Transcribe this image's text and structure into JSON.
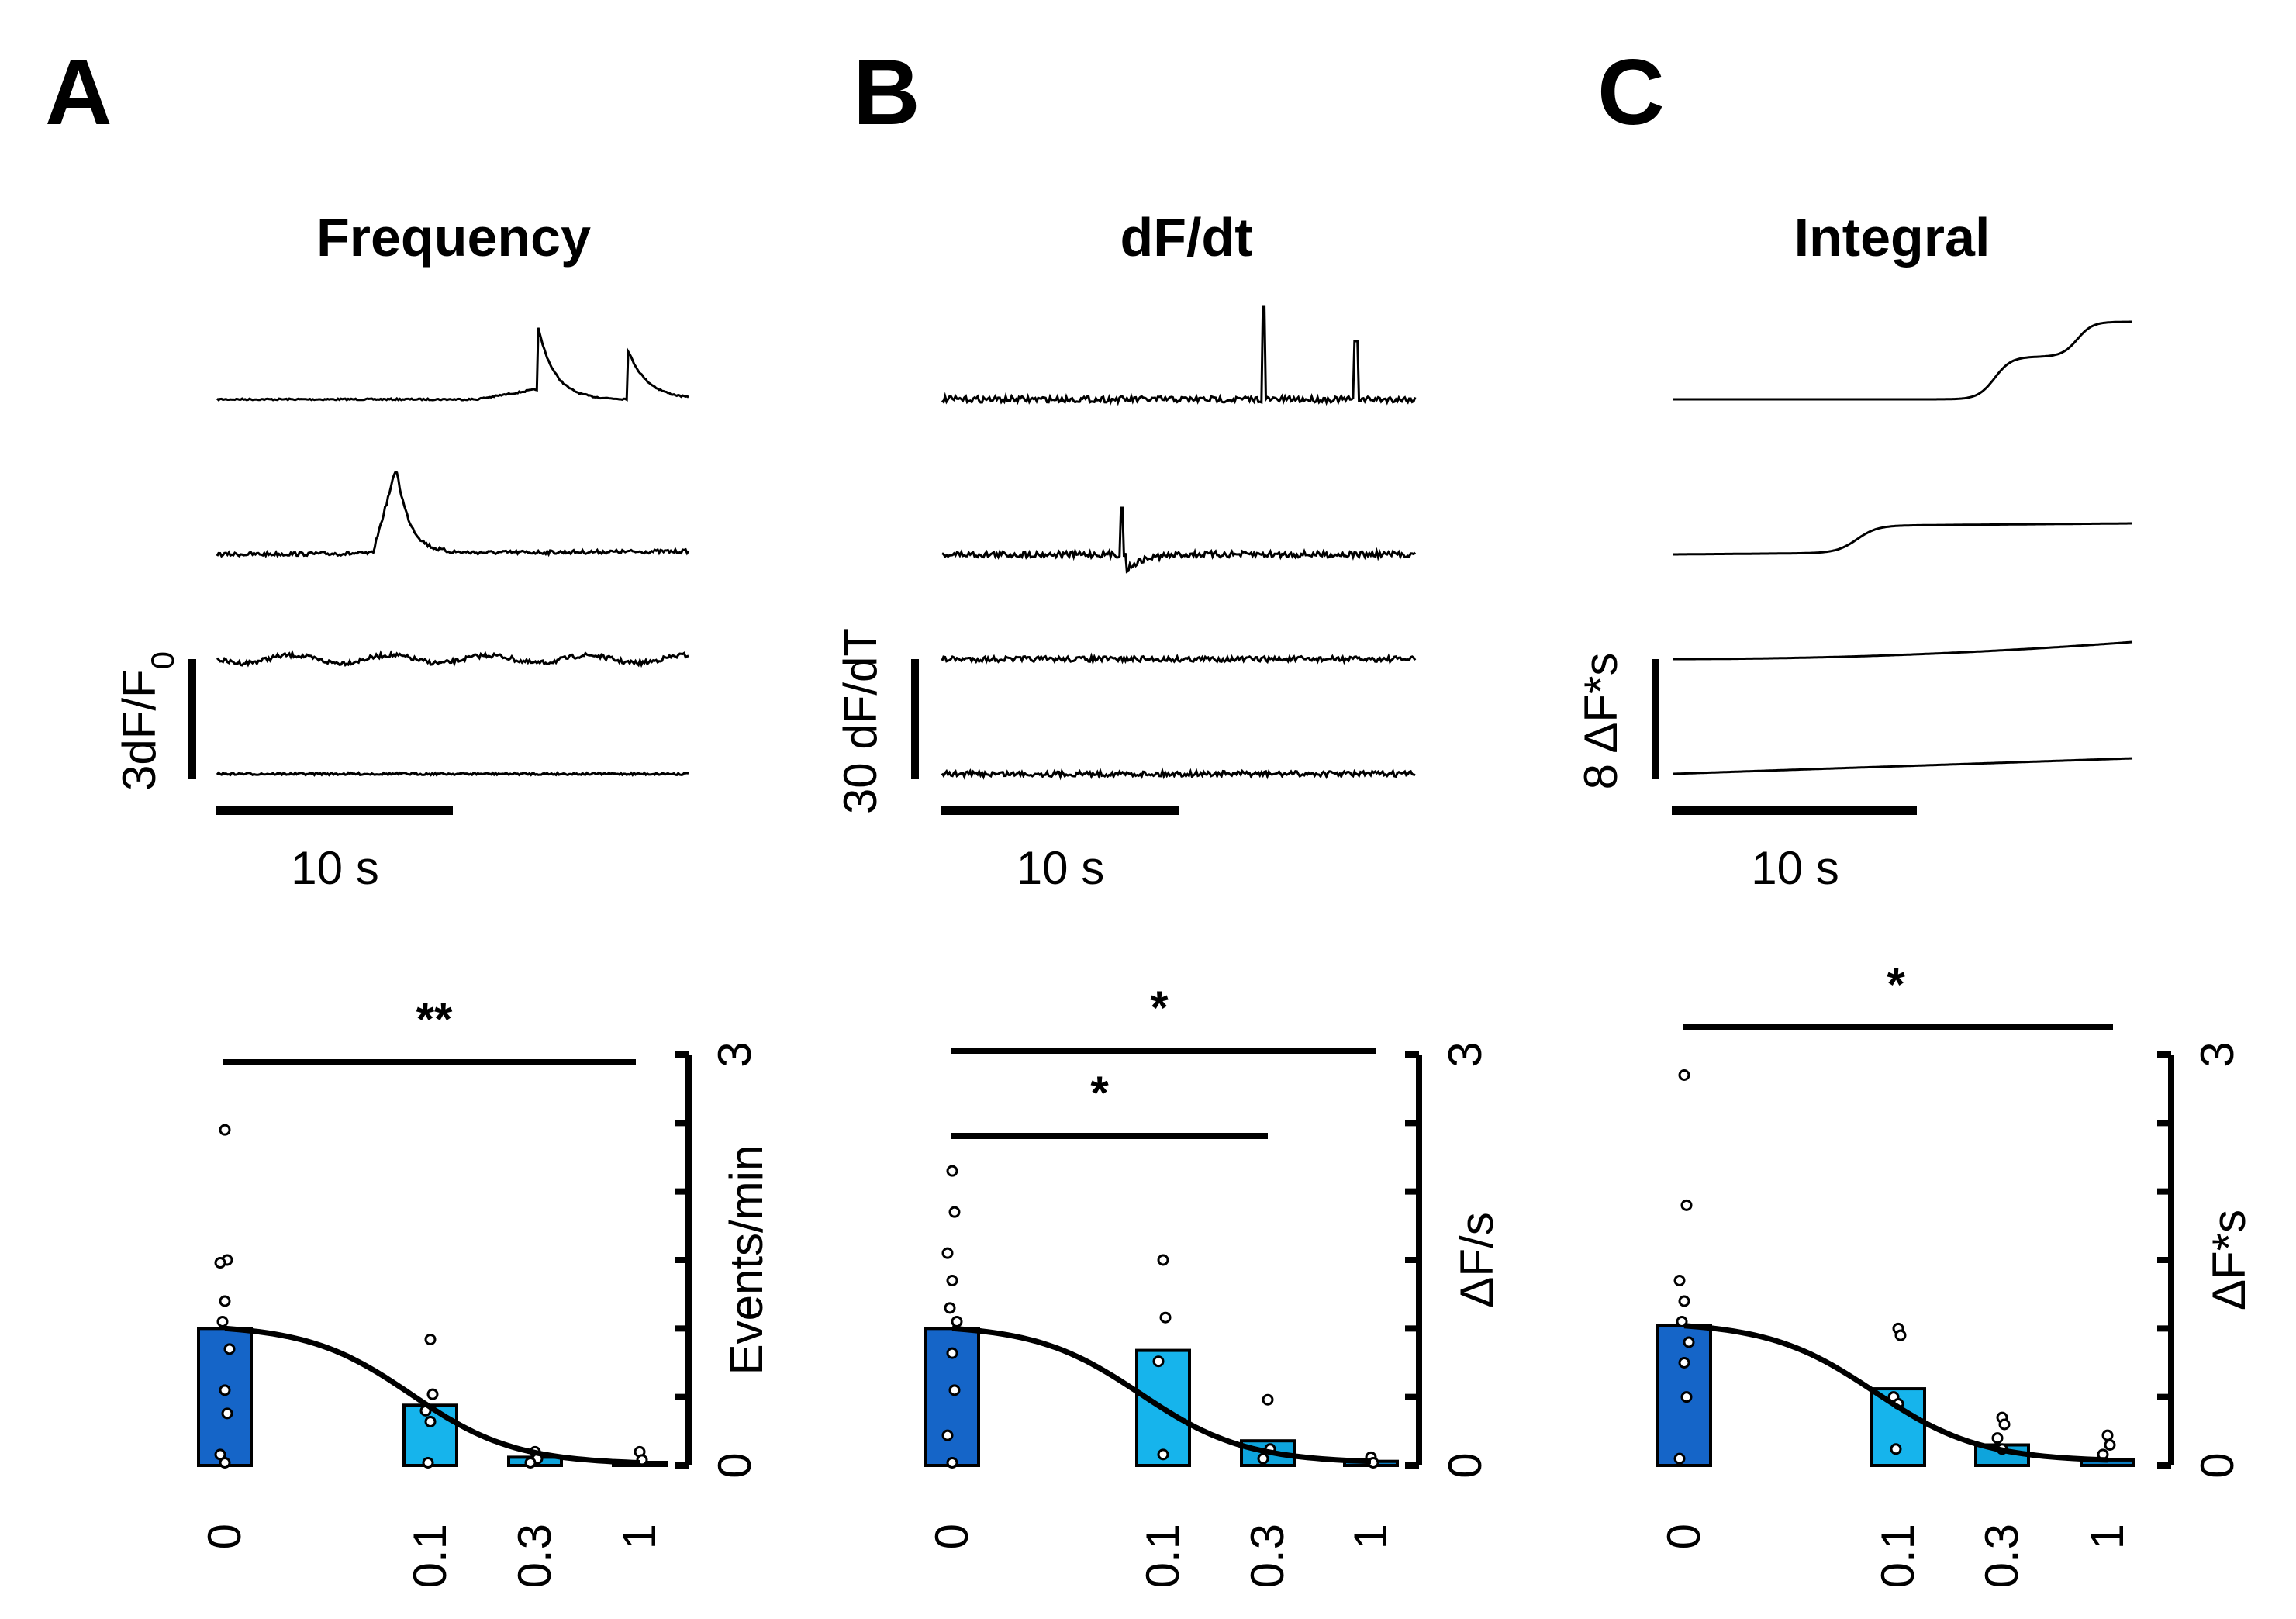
{
  "colors": {
    "bar_dose_0": "#1565c8",
    "bar_dose_0_1": "#16b4ec",
    "bar_dose_0_3": "#0ea4dc",
    "bar_dose_1": "#0b7fc4",
    "trace": "#000000",
    "fit_curve": "#000000"
  },
  "chart_data": [
    {
      "panel_letter": "A",
      "title": "Frequency",
      "type": "bar",
      "categories": [
        "0",
        "0.1",
        "0.3",
        "1"
      ],
      "x": [
        0,
        0.1,
        0.3,
        1
      ],
      "values": [
        1.0,
        0.44,
        0.06,
        0.02
      ],
      "ylabel": "Events/min",
      "ylim": [
        0,
        3
      ],
      "y_tick_labels": [
        "0",
        "3"
      ],
      "individual_points": [
        [
          2.45,
          1.5,
          1.48,
          1.2,
          1.05,
          0.85,
          0.55,
          0.38,
          0.08,
          0.02
        ],
        [
          0.92,
          0.52,
          0.4,
          0.32,
          0.02
        ],
        [
          0.1,
          0.05,
          0.02
        ],
        [
          0.1,
          0.04
        ]
      ],
      "fit_curve": "sigmoid",
      "significance": [
        {
          "from": "0",
          "to": "1",
          "label": "**"
        }
      ],
      "traces": {
        "scale_y_label": "3dF/F0",
        "scale_x_label": "10 s",
        "kind": "raw"
      }
    },
    {
      "panel_letter": "B",
      "title": "dF/dt",
      "type": "bar",
      "categories": [
        "0",
        "0.1",
        "0.3",
        "1"
      ],
      "x": [
        0,
        0.1,
        0.3,
        1
      ],
      "values": [
        1.0,
        0.84,
        0.18,
        0.03
      ],
      "ylabel": "ΔF/s",
      "ylim": [
        0,
        3
      ],
      "y_tick_labels": [
        "0",
        "3"
      ],
      "individual_points": [
        [
          2.15,
          1.85,
          1.55,
          1.35,
          1.15,
          1.05,
          0.82,
          0.55,
          0.22,
          0.02
        ],
        [
          1.5,
          1.08,
          0.76,
          0.08
        ],
        [
          0.48,
          0.12,
          0.05
        ],
        [
          0.06,
          0.02
        ]
      ],
      "fit_curve": "sigmoid",
      "significance": [
        {
          "from": "0",
          "to": "1",
          "label": "*"
        },
        {
          "from": "0",
          "to": "0.3",
          "label": "*"
        }
      ],
      "traces": {
        "scale_y_label": "30 dF/dT",
        "scale_x_label": "10 s",
        "kind": "derivative"
      }
    },
    {
      "panel_letter": "C",
      "title": "Integral",
      "type": "bar",
      "categories": [
        "0",
        "0.1",
        "0.3",
        "1"
      ],
      "x": [
        0,
        0.1,
        0.3,
        1
      ],
      "values": [
        1.02,
        0.56,
        0.15,
        0.04
      ],
      "ylabel": "ΔF*s",
      "ylim": [
        0,
        3
      ],
      "y_tick_labels": [
        "0",
        "3"
      ],
      "individual_points": [
        [
          2.85,
          1.9,
          1.35,
          1.2,
          1.05,
          0.9,
          0.75,
          0.5,
          0.05
        ],
        [
          1.0,
          0.95,
          0.5,
          0.45,
          0.12
        ],
        [
          0.35,
          0.3,
          0.2,
          0.12
        ],
        [
          0.22,
          0.15,
          0.08
        ]
      ],
      "fit_curve": "sigmoid",
      "significance": [
        {
          "from": "0",
          "to": "1",
          "label": "*"
        }
      ],
      "traces": {
        "scale_y_label": "8 ΔF*s",
        "scale_x_label": "10 s",
        "kind": "integral"
      }
    }
  ]
}
